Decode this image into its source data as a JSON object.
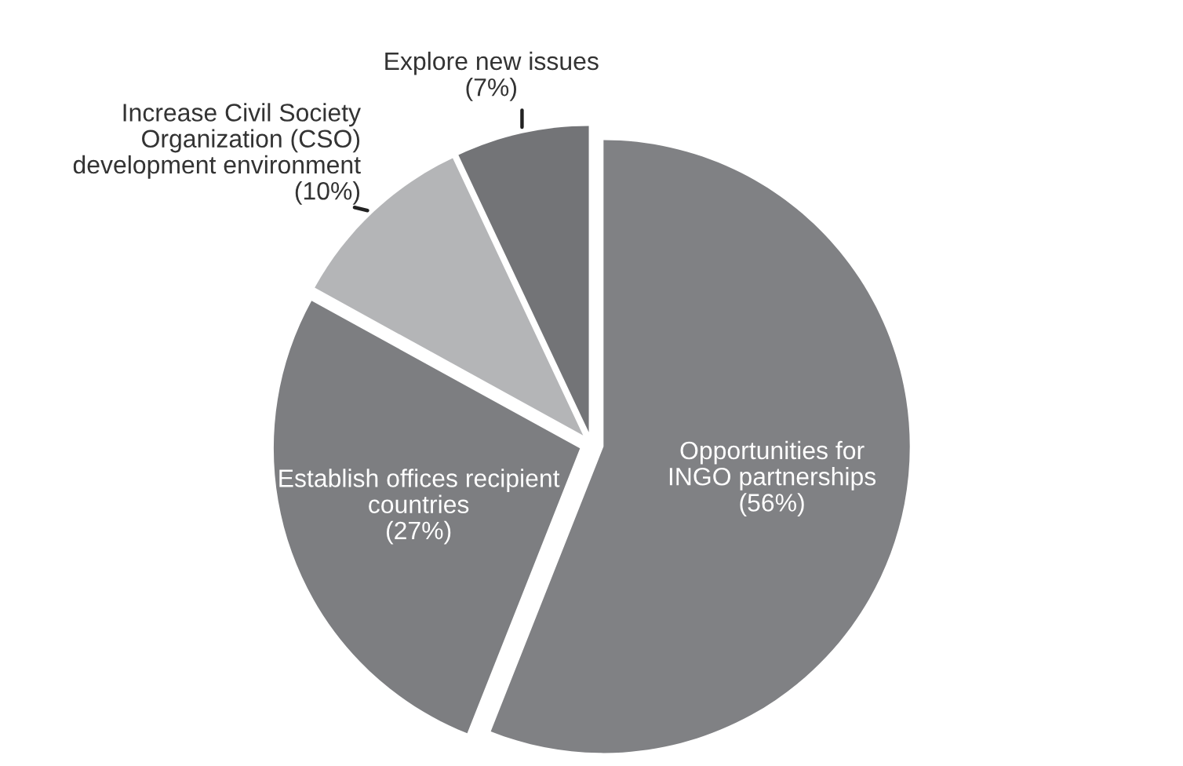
{
  "chart_data": {
    "type": "pie",
    "categories": [
      "Opportunities for\nINGO partnerships",
      "Establish offices recipient\ncountries",
      "Increase Civil Society\nOrganization (CSO)\ndevelopment environment",
      "Explore new issues"
    ],
    "values": [
      56,
      27,
      10,
      7
    ],
    "value_labels": [
      "(56%)",
      "(27%)",
      "(10%)",
      "(7%)"
    ],
    "colors": [
      "#808184",
      "#7d7e81",
      "#b4b5b7",
      "#737477"
    ]
  }
}
